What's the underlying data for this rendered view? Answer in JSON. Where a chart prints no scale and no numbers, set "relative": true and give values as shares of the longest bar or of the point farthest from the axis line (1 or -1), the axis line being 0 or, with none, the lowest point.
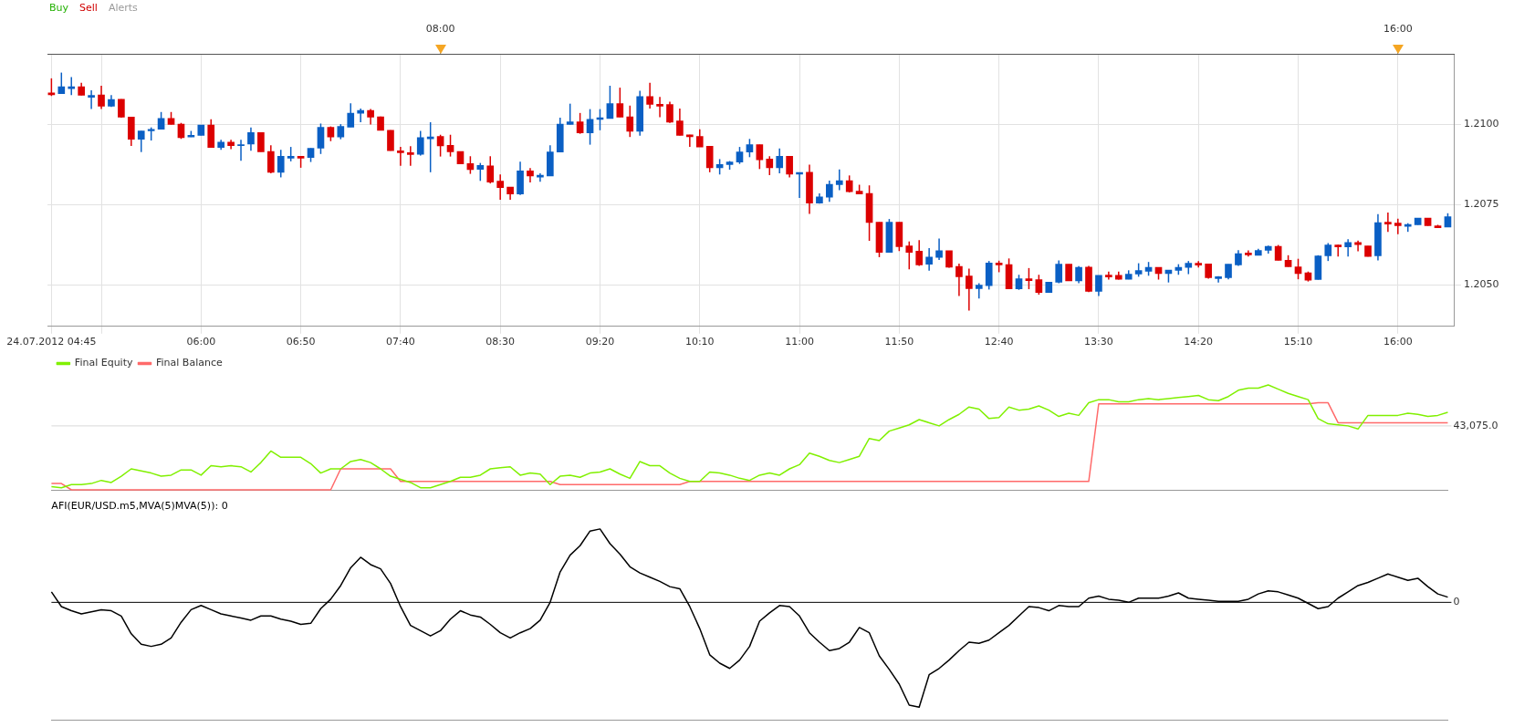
{
  "chart_data": [
    {
      "type": "candlestick",
      "annotations": [
        "Buy",
        "Sell",
        "Alerts"
      ],
      "x": [
        "2012-07-24T04:45",
        "2012-07-24T04:50",
        "2012-07-24T04:55",
        "2012-07-24T05:00",
        "2012-07-24T05:05",
        "2012-07-24T05:10",
        "2012-07-24T05:15",
        "2012-07-24T05:20",
        "2012-07-24T05:25",
        "2012-07-24T05:30",
        "2012-07-24T05:35",
        "2012-07-24T05:40",
        "2012-07-24T05:45",
        "2012-07-24T05:50",
        "2012-07-24T05:55",
        "2012-07-24T06:00",
        "2012-07-24T06:05",
        "2012-07-24T06:10",
        "2012-07-24T06:15",
        "2012-07-24T06:20",
        "2012-07-24T06:25",
        "2012-07-24T06:30",
        "2012-07-24T06:35",
        "2012-07-24T06:40",
        "2012-07-24T06:45",
        "2012-07-24T06:50",
        "2012-07-24T06:55",
        "2012-07-24T07:00",
        "2012-07-24T07:05",
        "2012-07-24T07:10",
        "2012-07-24T07:15",
        "2012-07-24T07:20",
        "2012-07-24T07:25",
        "2012-07-24T07:30",
        "2012-07-24T07:35",
        "2012-07-24T07:40",
        "2012-07-24T07:45",
        "2012-07-24T07:50",
        "2012-07-24T07:55",
        "2012-07-24T08:00",
        "2012-07-24T08:05",
        "2012-07-24T08:10",
        "2012-07-24T08:15",
        "2012-07-24T08:20",
        "2012-07-24T08:25",
        "2012-07-24T08:30",
        "2012-07-24T08:35",
        "2012-07-24T08:40",
        "2012-07-24T08:45",
        "2012-07-24T08:50",
        "2012-07-24T08:55",
        "2012-07-24T09:00",
        "2012-07-24T09:05",
        "2012-07-24T09:10",
        "2012-07-24T09:15",
        "2012-07-24T09:20",
        "2012-07-24T09:25",
        "2012-07-24T09:30",
        "2012-07-24T09:35",
        "2012-07-24T09:40",
        "2012-07-24T09:45",
        "2012-07-24T09:50",
        "2012-07-24T09:55",
        "2012-07-24T10:00",
        "2012-07-24T10:05",
        "2012-07-24T10:10",
        "2012-07-24T10:15",
        "2012-07-24T10:20",
        "2012-07-24T10:25",
        "2012-07-24T10:30",
        "2012-07-24T10:35",
        "2012-07-24T10:40",
        "2012-07-24T10:45",
        "2012-07-24T10:50",
        "2012-07-24T10:55",
        "2012-07-24T11:00",
        "2012-07-24T11:05",
        "2012-07-24T11:10",
        "2012-07-24T11:15",
        "2012-07-24T11:20",
        "2012-07-24T11:25",
        "2012-07-24T11:30",
        "2012-07-24T11:35",
        "2012-07-24T11:40",
        "2012-07-24T11:45",
        "2012-07-24T11:50",
        "2012-07-24T11:55",
        "2012-07-24T12:00",
        "2012-07-24T12:05",
        "2012-07-24T12:10",
        "2012-07-24T12:15",
        "2012-07-24T12:20",
        "2012-07-24T12:25",
        "2012-07-24T12:30",
        "2012-07-24T12:35",
        "2012-07-24T12:40",
        "2012-07-24T12:45",
        "2012-07-24T12:50",
        "2012-07-24T12:55",
        "2012-07-24T13:00",
        "2012-07-24T13:05",
        "2012-07-24T13:10",
        "2012-07-24T13:15",
        "2012-07-24T13:20",
        "2012-07-24T13:25",
        "2012-07-24T13:30",
        "2012-07-24T13:35",
        "2012-07-24T13:40",
        "2012-07-24T13:45",
        "2012-07-24T13:50",
        "2012-07-24T13:55",
        "2012-07-24T14:00",
        "2012-07-24T14:05",
        "2012-07-24T14:10",
        "2012-07-24T14:15",
        "2012-07-24T14:20",
        "2012-07-24T14:25",
        "2012-07-24T14:30",
        "2012-07-24T14:35",
        "2012-07-24T14:40",
        "2012-07-24T14:45",
        "2012-07-24T14:50",
        "2012-07-24T14:55",
        "2012-07-24T15:00",
        "2012-07-24T15:05",
        "2012-07-24T15:10",
        "2012-07-24T15:15",
        "2012-07-24T15:20",
        "2012-07-24T15:25",
        "2012-07-24T15:30",
        "2012-07-24T15:35",
        "2012-07-24T15:40",
        "2012-07-24T15:45",
        "2012-07-24T15:50",
        "2012-07-24T15:55",
        "2012-07-24T16:00",
        "2012-07-24T16:05",
        "2012-07-24T16:10",
        "2012-07-24T16:15",
        "2012-07-24T16:20",
        "2012-07-24T16:25"
      ],
      "ohlc": [
        [
          1.21099,
          1.21144,
          1.21089,
          1.21093
        ],
        [
          1.21096,
          1.21162,
          1.21096,
          1.21118
        ],
        [
          1.21112,
          1.21148,
          1.21092,
          1.21118
        ],
        [
          1.21118,
          1.2113,
          1.21091,
          1.21091
        ],
        [
          1.21085,
          1.21107,
          1.21048,
          1.21091
        ],
        [
          1.21092,
          1.21121,
          1.21048,
          1.21057
        ],
        [
          1.21057,
          1.21092,
          1.21055,
          1.21078
        ],
        [
          1.21079,
          1.21079,
          1.21021,
          1.21023
        ],
        [
          1.21023,
          1.21023,
          1.20933,
          1.20954
        ],
        [
          1.20954,
          1.2098,
          1.20914,
          1.2098
        ],
        [
          1.2098,
          1.20991,
          1.2095,
          1.20985
        ],
        [
          1.20985,
          1.21039,
          1.20985,
          1.21019
        ],
        [
          1.21019,
          1.21039,
          1.21,
          1.21
        ],
        [
          1.21001,
          1.21005,
          1.20955,
          1.20959
        ],
        [
          1.20961,
          1.2098,
          1.20961,
          1.20966
        ],
        [
          1.20966,
          1.20998,
          1.20966,
          1.20998
        ],
        [
          1.20998,
          1.21016,
          1.20928,
          1.20928
        ],
        [
          1.20928,
          1.20952,
          1.20921,
          1.20945
        ],
        [
          1.20945,
          1.20952,
          1.20923,
          1.20934
        ],
        [
          1.20934,
          1.20952,
          1.20887,
          1.20937
        ],
        [
          1.20939,
          1.20991,
          1.20918,
          1.20975
        ],
        [
          1.20975,
          1.20975,
          1.20915,
          1.20915
        ],
        [
          1.20916,
          1.20935,
          1.20848,
          1.20851
        ],
        [
          1.20851,
          1.20921,
          1.20835,
          1.20901
        ],
        [
          1.20895,
          1.2093,
          1.20885,
          1.20901
        ],
        [
          1.20901,
          1.20901,
          1.20865,
          1.20895
        ],
        [
          1.20897,
          1.20926,
          1.20883,
          1.20926
        ],
        [
          1.20926,
          1.21003,
          1.20908,
          1.20991
        ],
        [
          1.20991,
          1.20994,
          1.20948,
          1.20961
        ],
        [
          1.20961,
          1.21001,
          1.20954,
          1.20994
        ],
        [
          1.20992,
          1.21066,
          1.20992,
          1.21035
        ],
        [
          1.21035,
          1.2105,
          1.21007,
          1.21044
        ],
        [
          1.21044,
          1.21048,
          1.21,
          1.21023
        ],
        [
          1.21024,
          1.21025,
          1.20982,
          1.20982
        ],
        [
          1.20982,
          1.20982,
          1.20918,
          1.20918
        ],
        [
          1.20918,
          1.2093,
          1.20871,
          1.20912
        ],
        [
          1.20912,
          1.20932,
          1.20871,
          1.20906
        ],
        [
          1.20907,
          1.2098,
          1.20903,
          1.20959
        ],
        [
          1.20955,
          1.21007,
          1.20851,
          1.20961
        ],
        [
          1.20963,
          1.20968,
          1.209,
          1.20933
        ],
        [
          1.20935,
          1.20968,
          1.209,
          1.20915
        ],
        [
          1.20916,
          1.20916,
          1.20877,
          1.20877
        ],
        [
          1.20878,
          1.20901,
          1.20846,
          1.20859
        ],
        [
          1.2086,
          1.2088,
          1.20824,
          1.20872
        ],
        [
          1.20871,
          1.20901,
          1.20816,
          1.2082
        ],
        [
          1.20823,
          1.20844,
          1.20765,
          1.20803
        ],
        [
          1.20805,
          1.20805,
          1.20765,
          1.20783
        ],
        [
          1.20783,
          1.20884,
          1.2078,
          1.20855
        ],
        [
          1.20855,
          1.20864,
          1.20819,
          1.20839
        ],
        [
          1.20836,
          1.20848,
          1.20821,
          1.20842
        ],
        [
          1.20839,
          1.20935,
          1.20839,
          1.20914
        ],
        [
          1.20914,
          1.21021,
          1.20914,
          1.21001
        ],
        [
          1.21,
          1.21065,
          1.21,
          1.21008
        ],
        [
          1.21008,
          1.21036,
          1.20971,
          1.20974
        ],
        [
          1.20974,
          1.21048,
          1.20937,
          1.21016
        ],
        [
          1.21016,
          1.21048,
          1.20982,
          1.21021
        ],
        [
          1.21019,
          1.21121,
          1.21019,
          1.21065
        ],
        [
          1.21065,
          1.21115,
          1.21023,
          1.21023
        ],
        [
          1.21024,
          1.21059,
          1.20961,
          1.20979
        ],
        [
          1.20979,
          1.21105,
          1.20965,
          1.21087
        ],
        [
          1.21087,
          1.2113,
          1.2105,
          1.21063
        ],
        [
          1.21063,
          1.21086,
          1.21023,
          1.21057
        ],
        [
          1.21062,
          1.21071,
          1.21005,
          1.21007
        ],
        [
          1.21011,
          1.2105,
          1.20966,
          1.20966
        ],
        [
          1.20968,
          1.20968,
          1.2093,
          1.20962
        ],
        [
          1.20963,
          1.20985,
          1.2093,
          1.2093
        ],
        [
          1.20932,
          1.20932,
          1.20851,
          1.20865
        ],
        [
          1.20865,
          1.20892,
          1.20844,
          1.20875
        ],
        [
          1.20875,
          1.20886,
          1.20859,
          1.20883
        ],
        [
          1.20883,
          1.2093,
          1.20877,
          1.20914
        ],
        [
          1.20914,
          1.20955,
          1.20898,
          1.20937
        ],
        [
          1.20937,
          1.20937,
          1.20861,
          1.2089
        ],
        [
          1.20892,
          1.20901,
          1.20842,
          1.20865
        ],
        [
          1.20865,
          1.20925,
          1.20848,
          1.20901
        ],
        [
          1.20901,
          1.20901,
          1.20835,
          1.20845
        ],
        [
          1.20845,
          1.2085,
          1.20771,
          1.2085
        ],
        [
          1.20851,
          1.20875,
          1.20721,
          1.20755
        ],
        [
          1.20755,
          1.20785,
          1.20753,
          1.20774
        ],
        [
          1.20773,
          1.20825,
          1.20759,
          1.20813
        ],
        [
          1.20812,
          1.2086,
          1.20795,
          1.20825
        ],
        [
          1.20825,
          1.20841,
          1.20788,
          1.2079
        ],
        [
          1.20792,
          1.20812,
          1.20783,
          1.20783
        ],
        [
          1.20785,
          1.2081,
          1.20637,
          1.20694
        ],
        [
          1.20695,
          1.20695,
          1.20586,
          1.20601
        ],
        [
          1.20601,
          1.20705,
          1.20601,
          1.20695
        ],
        [
          1.20695,
          1.20695,
          1.20605,
          1.20619
        ],
        [
          1.20621,
          1.20635,
          1.20548,
          1.20601
        ],
        [
          1.20605,
          1.20639,
          1.20559,
          1.20562
        ],
        [
          1.20564,
          1.20614,
          1.20544,
          1.20586
        ],
        [
          1.20585,
          1.20644,
          1.20577,
          1.20606
        ],
        [
          1.20606,
          1.20606,
          1.20553,
          1.20555
        ],
        [
          1.20557,
          1.20566,
          1.20465,
          1.20525
        ],
        [
          1.20527,
          1.2055,
          1.20419,
          1.20488
        ],
        [
          1.20488,
          1.20505,
          1.20457,
          1.20499
        ],
        [
          1.20497,
          1.20574,
          1.20485,
          1.20568
        ],
        [
          1.20568,
          1.20575,
          1.20539,
          1.20562
        ],
        [
          1.20563,
          1.20582,
          1.20487,
          1.20487
        ],
        [
          1.20487,
          1.20531,
          1.20484,
          1.20519
        ],
        [
          1.20519,
          1.20552,
          1.20486,
          1.20513
        ],
        [
          1.20516,
          1.20531,
          1.20469,
          1.20476
        ],
        [
          1.20476,
          1.20508,
          1.20476,
          1.20508
        ],
        [
          1.20508,
          1.20576,
          1.20505,
          1.20564
        ],
        [
          1.20564,
          1.20564,
          1.20512,
          1.20512
        ],
        [
          1.20512,
          1.20558,
          1.20505,
          1.20554
        ],
        [
          1.20555,
          1.20559,
          1.20477,
          1.20479
        ],
        [
          1.20479,
          1.20529,
          1.20465,
          1.20529
        ],
        [
          1.2053,
          1.20541,
          1.20516,
          1.20524
        ],
        [
          1.20529,
          1.20541,
          1.20516,
          1.20517
        ],
        [
          1.20517,
          1.20545,
          1.20517,
          1.20533
        ],
        [
          1.20533,
          1.20567,
          1.20525,
          1.20544
        ],
        [
          1.20542,
          1.20571,
          1.20528,
          1.20554
        ],
        [
          1.20554,
          1.20554,
          1.20516,
          1.20535
        ],
        [
          1.20535,
          1.20546,
          1.20507,
          1.20546
        ],
        [
          1.20545,
          1.20564,
          1.20531,
          1.20554
        ],
        [
          1.20554,
          1.20574,
          1.20533,
          1.20567
        ],
        [
          1.20567,
          1.20574,
          1.20554,
          1.20561
        ],
        [
          1.20565,
          1.20565,
          1.20519,
          1.20522
        ],
        [
          1.20519,
          1.20527,
          1.20507,
          1.20525
        ],
        [
          1.20522,
          1.20564,
          1.20517,
          1.20564
        ],
        [
          1.20562,
          1.20608,
          1.20559,
          1.20597
        ],
        [
          1.20599,
          1.20607,
          1.20588,
          1.20593
        ],
        [
          1.20592,
          1.20612,
          1.20592,
          1.20607
        ],
        [
          1.20607,
          1.20622,
          1.20597,
          1.2062
        ],
        [
          1.2062,
          1.20624,
          1.20576,
          1.20576
        ],
        [
          1.20576,
          1.20592,
          1.20556,
          1.20556
        ],
        [
          1.20556,
          1.20581,
          1.20517,
          1.20535
        ],
        [
          1.20537,
          1.20541,
          1.2051,
          1.20514
        ],
        [
          1.20516,
          1.20592,
          1.20516,
          1.2059
        ],
        [
          1.2059,
          1.2063,
          1.20574,
          1.20624
        ],
        [
          1.20624,
          1.20625,
          1.20588,
          1.20618
        ],
        [
          1.20618,
          1.20642,
          1.20588,
          1.20632
        ],
        [
          1.20632,
          1.20638,
          1.20604,
          1.20625
        ],
        [
          1.20621,
          1.20621,
          1.20588,
          1.20588
        ],
        [
          1.2059,
          1.2072,
          1.20576,
          1.20694
        ],
        [
          1.20695,
          1.20725,
          1.20665,
          1.20689
        ],
        [
          1.20692,
          1.20706,
          1.20658,
          1.20684
        ],
        [
          1.20682,
          1.20692,
          1.20665,
          1.20688
        ],
        [
          1.20687,
          1.20708,
          1.20687,
          1.20708
        ],
        [
          1.20708,
          1.20708,
          1.20684,
          1.20684
        ],
        [
          1.20684,
          1.20687,
          1.20677,
          1.20678
        ],
        [
          1.2068,
          1.20723,
          1.2068,
          1.20712
        ]
      ],
      "colors": [
        "#dc0000",
        "#0a5fc4",
        "#0a5fc4",
        "#dc0000",
        "#0a5fc4",
        "#dc0000",
        "#0a5fc4",
        "#dc0000",
        "#dc0000",
        "#0a5fc4",
        "#0a5fc4",
        "#0a5fc4",
        "#dc0000",
        "#dc0000",
        "#0a5fc4",
        "#0a5fc4",
        "#dc0000",
        "#0a5fc4",
        "#dc0000",
        "#0a5fc4",
        "#0a5fc4",
        "#dc0000",
        "#dc0000",
        "#0a5fc4",
        "#0a5fc4",
        "#dc0000",
        "#0a5fc4",
        "#0a5fc4",
        "#dc0000",
        "#0a5fc4",
        "#0a5fc4",
        "#0a5fc4",
        "#dc0000",
        "#dc0000",
        "#dc0000",
        "#dc0000",
        "#dc0000",
        "#0a5fc4",
        "#0a5fc4",
        "#dc0000",
        "#dc0000",
        "#dc0000",
        "#dc0000",
        "#0a5fc4",
        "#dc0000",
        "#dc0000",
        "#dc0000",
        "#0a5fc4",
        "#dc0000",
        "#0a5fc4",
        "#0a5fc4",
        "#0a5fc4",
        "#0a5fc4",
        "#dc0000",
        "#0a5fc4",
        "#0a5fc4",
        "#0a5fc4",
        "#dc0000",
        "#dc0000",
        "#0a5fc4",
        "#dc0000",
        "#dc0000",
        "#dc0000",
        "#dc0000",
        "#dc0000",
        "#dc0000",
        "#dc0000",
        "#0a5fc4",
        "#0a5fc4",
        "#0a5fc4",
        "#0a5fc4",
        "#dc0000",
        "#dc0000",
        "#0a5fc4",
        "#dc0000",
        "#0a5fc4",
        "#dc0000",
        "#0a5fc4",
        "#0a5fc4",
        "#0a5fc4",
        "#dc0000",
        "#dc0000",
        "#dc0000",
        "#dc0000",
        "#0a5fc4",
        "#dc0000",
        "#dc0000",
        "#dc0000",
        "#0a5fc4",
        "#0a5fc4",
        "#dc0000",
        "#dc0000",
        "#dc0000",
        "#0a5fc4",
        "#0a5fc4",
        "#dc0000",
        "#dc0000",
        "#0a5fc4",
        "#dc0000",
        "#dc0000",
        "#0a5fc4",
        "#0a5fc4",
        "#dc0000",
        "#0a5fc4",
        "#dc0000",
        "#0a5fc4",
        "#dc0000",
        "#dc0000",
        "#0a5fc4",
        "#0a5fc4",
        "#0a5fc4",
        "#dc0000",
        "#0a5fc4",
        "#0a5fc4",
        "#0a5fc4",
        "#dc0000",
        "#dc0000",
        "#0a5fc4",
        "#0a5fc4",
        "#0a5fc4",
        "#dc0000",
        "#0a5fc4",
        "#0a5fc4",
        "#dc0000",
        "#dc0000",
        "#dc0000",
        "#dc0000",
        "#0a5fc4",
        "#0a5fc4",
        "#dc0000",
        "#0a5fc4",
        "#dc0000",
        "#dc0000",
        "#0a5fc4",
        "#dc0000",
        "#dc0000",
        "#0a5fc4",
        "#0a5fc4",
        "#dc0000",
        "#dc0000",
        "#0a5fc4"
      ],
      "xlim": [
        "2012-07-24T04:43",
        "2012-07-24T16:28"
      ],
      "xticks": [
        {
          "value": "2012-07-24T04:45",
          "label": "24.07.2012 04:45"
        },
        {
          "value": "2012-07-24T05:10",
          "label": null
        },
        {
          "value": "2012-07-24T06:00",
          "label": "06:00"
        },
        {
          "value": "2012-07-24T06:50",
          "label": "06:50"
        },
        {
          "value": "2012-07-24T07:40",
          "label": "07:40"
        },
        {
          "value": "2012-07-24T08:30",
          "label": "08:30"
        },
        {
          "value": "2012-07-24T09:20",
          "label": "09:20"
        },
        {
          "value": "2012-07-24T10:10",
          "label": "10:10"
        },
        {
          "value": "2012-07-24T11:00",
          "label": "11:00"
        },
        {
          "value": "2012-07-24T11:50",
          "label": "11:50"
        },
        {
          "value": "2012-07-24T12:40",
          "label": "12:40"
        },
        {
          "value": "2012-07-24T13:30",
          "label": "13:30"
        },
        {
          "value": "2012-07-24T14:20",
          "label": "14:20"
        },
        {
          "value": "2012-07-24T15:10",
          "label": "15:10"
        },
        {
          "value": "2012-07-24T16:00",
          "label": "16:00"
        }
      ],
      "x2lim": [
        "2012-07-24T04:43",
        "2012-07-24T16:28"
      ],
      "x2ticks": [
        {
          "value": "2012-07-24T08:00",
          "label": "08:00"
        },
        {
          "value": "2012-07-24T16:00",
          "label": "16:00"
        }
      ],
      "ylim": [
        1.2037,
        1.2122
      ],
      "yticks": [
        {
          "value": 1.205,
          "label": "1.2050"
        },
        {
          "value": 1.2075,
          "label": "1.2075"
        },
        {
          "value": 1.21,
          "label": "1.2100"
        }
      ],
      "grid": true
    },
    {
      "type": "line",
      "relative": true,
      "categories": [
        null,
        null,
        null,
        null,
        null,
        null,
        null,
        null,
        null,
        null,
        null,
        null,
        null,
        null,
        null,
        null,
        null,
        null,
        null,
        null,
        null,
        null,
        null,
        null,
        null,
        null,
        null,
        null,
        null,
        null,
        null,
        null,
        null,
        null,
        null,
        null,
        null,
        null,
        null,
        null,
        null,
        null,
        null,
        null,
        null,
        null,
        null,
        null,
        null,
        null,
        null,
        null,
        null,
        null,
        null,
        null,
        null,
        null,
        null,
        null,
        null,
        null,
        null,
        null,
        null,
        null,
        null,
        null,
        null,
        null,
        null,
        null,
        null,
        null,
        null,
        null,
        null,
        null,
        null,
        null,
        null,
        null,
        null,
        null,
        null,
        null,
        null,
        null,
        null,
        null,
        null,
        null,
        null,
        null,
        null,
        null,
        null,
        null,
        null,
        null,
        null,
        null,
        null,
        null,
        null,
        null,
        null,
        null,
        null,
        null,
        null,
        null,
        null,
        null,
        null,
        null,
        null,
        null,
        null,
        null,
        null,
        null,
        null,
        null,
        null,
        null,
        null,
        null,
        null,
        null,
        null,
        null,
        null,
        null,
        null,
        null,
        null,
        null,
        null,
        null,
        null
      ],
      "series": [
        {
          "name": "Final Equity",
          "color": "#80f000",
          "values": [
            0.03,
            0.02,
            0.05,
            0.05,
            0.06,
            0.09,
            0.07,
            0.13,
            0.2,
            0.18,
            0.16,
            0.13,
            0.14,
            0.19,
            0.19,
            0.14,
            0.23,
            0.22,
            0.23,
            0.22,
            0.17,
            0.26,
            0.37,
            0.31,
            0.31,
            0.31,
            0.25,
            0.16,
            0.2,
            0.2,
            0.27,
            0.29,
            0.26,
            0.2,
            0.13,
            0.1,
            0.07,
            0.02,
            0.02,
            0.05,
            0.08,
            0.12,
            0.12,
            0.14,
            0.2,
            0.21,
            0.22,
            0.14,
            0.16,
            0.15,
            0.05,
            0.13,
            0.14,
            0.12,
            0.16,
            0.17,
            0.2,
            0.15,
            0.11,
            0.27,
            0.23,
            0.23,
            0.16,
            0.11,
            0.08,
            0.08,
            0.17,
            0.16,
            0.14,
            0.11,
            0.09,
            0.14,
            0.16,
            0.14,
            0.2,
            0.24,
            0.35,
            0.32,
            0.28,
            0.26,
            0.29,
            0.32,
            0.49,
            0.47,
            0.56,
            0.59,
            0.62,
            0.67,
            0.64,
            0.61,
            0.67,
            0.72,
            0.79,
            0.77,
            0.68,
            0.69,
            0.79,
            0.76,
            0.77,
            0.8,
            0.76,
            0.7,
            0.73,
            0.71,
            0.83,
            0.86,
            0.86,
            0.84,
            0.84,
            0.86,
            0.87,
            0.86,
            0.87,
            0.88,
            0.89,
            0.9,
            0.86,
            0.85,
            0.89,
            0.95,
            0.97,
            0.97,
            1.0,
            0.96,
            0.92,
            0.89,
            0.86,
            0.68,
            0.63,
            0.62,
            0.61,
            0.58,
            0.71,
            0.71,
            0.71,
            0.71,
            0.73,
            0.72,
            0.7,
            0.71,
            0.74
          ]
        },
        {
          "name": "Final Balance",
          "color": "#ff6a6a",
          "values": [
            0.06,
            0.06,
            0,
            0,
            0,
            0,
            0,
            0,
            0,
            0,
            0,
            0,
            0,
            0,
            0,
            0,
            0,
            0,
            0,
            0,
            0,
            0,
            0,
            0,
            0,
            0,
            0,
            0,
            0,
            0.2,
            0.2,
            0.2,
            0.2,
            0.2,
            0.2,
            0.08,
            0.08,
            0.08,
            0.08,
            0.08,
            0.08,
            0.08,
            0.08,
            0.08,
            0.08,
            0.08,
            0.08,
            0.08,
            0.08,
            0.08,
            0.08,
            0.05,
            0.05,
            0.05,
            0.05,
            0.05,
            0.05,
            0.05,
            0.05,
            0.05,
            0.05,
            0.05,
            0.05,
            0.05,
            0.08,
            0.08,
            0.08,
            0.08,
            0.08,
            0.08,
            0.08,
            0.08,
            0.08,
            0.08,
            0.08,
            0.08,
            0.08,
            0.08,
            0.08,
            0.08,
            0.08,
            0.08,
            0.08,
            0.08,
            0.08,
            0.08,
            0.08,
            0.08,
            0.08,
            0.08,
            0.08,
            0.08,
            0.08,
            0.08,
            0.08,
            0.08,
            0.08,
            0.08,
            0.08,
            0.08,
            0.08,
            0.08,
            0.08,
            0.08,
            0.08,
            0.82,
            0.82,
            0.82,
            0.82,
            0.82,
            0.82,
            0.82,
            0.82,
            0.82,
            0.82,
            0.82,
            0.82,
            0.82,
            0.82,
            0.82,
            0.82,
            0.82,
            0.82,
            0.82,
            0.82,
            0.82,
            0.82,
            0.83,
            0.83,
            0.64,
            0.64,
            0.64,
            0.64,
            0.64,
            0.64,
            0.64,
            0.64,
            0.64,
            0.64,
            0.64,
            0.64
          ]
        }
      ],
      "legend": "top left",
      "ref_lines": [
        {
          "axis": "y",
          "value": 0.61,
          "color": "#d8d8d8"
        }
      ],
      "annotations": [
        "43,075.0"
      ]
    },
    {
      "type": "line",
      "relative": true,
      "title": "AFI(EUR/USD.m5,MVA(5)MVA(5)): 0",
      "categories": [
        null,
        null,
        null,
        null,
        null,
        null,
        null,
        null,
        null,
        null,
        null,
        null,
        null,
        null,
        null,
        null,
        null,
        null,
        null,
        null,
        null,
        null,
        null,
        null,
        null,
        null,
        null,
        null,
        null,
        null,
        null,
        null,
        null,
        null,
        null,
        null,
        null,
        null,
        null,
        null,
        null,
        null,
        null,
        null,
        null,
        null,
        null,
        null,
        null,
        null,
        null,
        null,
        null,
        null,
        null,
        null,
        null,
        null,
        null,
        null,
        null,
        null,
        null,
        null,
        null,
        null,
        null,
        null,
        null,
        null,
        null,
        null,
        null,
        null,
        null,
        null,
        null,
        null,
        null,
        null,
        null,
        null,
        null,
        null,
        null,
        null,
        null,
        null,
        null,
        null,
        null,
        null,
        null,
        null,
        null,
        null,
        null,
        null,
        null,
        null,
        null,
        null,
        null,
        null,
        null,
        null,
        null,
        null,
        null,
        null,
        null,
        null,
        null,
        null,
        null,
        null,
        null,
        null,
        null,
        null,
        null,
        null,
        null,
        null,
        null,
        null,
        null,
        null,
        null,
        null,
        null,
        null,
        null,
        null,
        null,
        null,
        null,
        null,
        null,
        null,
        null
      ],
      "series": [
        {
          "color": "#000000",
          "values": [
            0.1,
            -0.04,
            -0.08,
            -0.11,
            -0.09,
            -0.07,
            -0.08,
            -0.13,
            -0.3,
            -0.4,
            -0.42,
            -0.4,
            -0.34,
            -0.19,
            -0.07,
            -0.03,
            -0.07,
            -0.11,
            -0.13,
            -0.15,
            -0.17,
            -0.13,
            -0.13,
            -0.16,
            -0.18,
            -0.21,
            -0.2,
            -0.06,
            0.03,
            0.16,
            0.33,
            0.43,
            0.36,
            0.32,
            0.18,
            -0.04,
            -0.22,
            -0.27,
            -0.32,
            -0.27,
            -0.16,
            -0.08,
            -0.12,
            -0.14,
            -0.21,
            -0.29,
            -0.34,
            -0.29,
            -0.25,
            -0.17,
            0,
            0.29,
            0.45,
            0.54,
            0.68,
            0.7,
            0.56,
            0.46,
            0.34,
            0.28,
            0.24,
            0.2,
            0.15,
            0.13,
            -0.04,
            -0.25,
            -0.5,
            -0.58,
            -0.63,
            -0.55,
            -0.42,
            -0.18,
            -0.1,
            -0.03,
            -0.04,
            -0.13,
            -0.29,
            -0.38,
            -0.46,
            -0.44,
            -0.38,
            -0.24,
            -0.29,
            -0.51,
            -0.64,
            -0.78,
            -0.98,
            -1.0,
            -0.69,
            -0.63,
            -0.55,
            -0.46,
            -0.38,
            -0.39,
            -0.36,
            -0.29,
            -0.22,
            -0.13,
            -0.04,
            -0.05,
            -0.08,
            -0.03,
            -0.04,
            -0.04,
            0.04,
            0.06,
            0.03,
            0.02,
            0,
            0.04,
            0.04,
            0.04,
            0.06,
            0.09,
            0.04,
            0.03,
            0.02,
            0.01,
            0.01,
            0.01,
            0.03,
            0.08,
            0.11,
            0.1,
            0.07,
            0.04,
            -0.01,
            -0.06,
            -0.04,
            0.04,
            0.1,
            0.16,
            0.19,
            0.23,
            0.27,
            0.24,
            0.21,
            0.23,
            0.15,
            0.08,
            0.05
          ]
        }
      ],
      "annotations": [
        "0"
      ]
    }
  ]
}
